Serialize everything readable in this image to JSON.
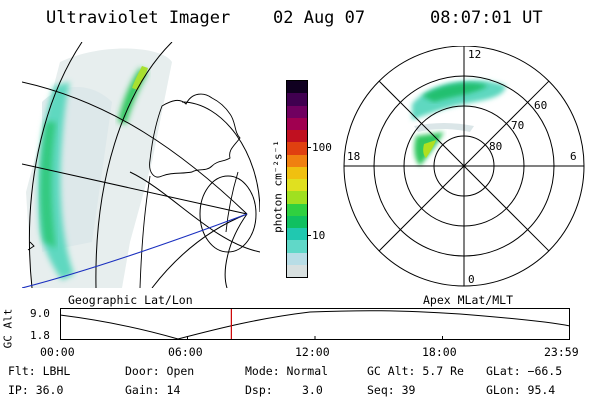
{
  "header": {
    "instrument": "Ultraviolet Imager",
    "date": "02 Aug 07",
    "time": "08:07:01 UT"
  },
  "geo_panel": {
    "caption": "Geographic Lat/Lon"
  },
  "polar_panel": {
    "caption": "Apex MLat/MLT",
    "mlt_labels": [
      "12",
      "18",
      "6",
      "0"
    ],
    "lat_labels": [
      "60",
      "70",
      "80"
    ]
  },
  "colorbar": {
    "unit_label": "photon cm⁻²s⁻¹",
    "ticks": [
      "100",
      "10"
    ],
    "colors": [
      "#d8e0e0",
      "#b8dde6",
      "#60d8c8",
      "#20c8b0",
      "#10c060",
      "#30d040",
      "#a0e020",
      "#e0e020",
      "#f0c010",
      "#f08010",
      "#e04010",
      "#c01020",
      "#a00050",
      "#700060",
      "#400050",
      "#100020"
    ]
  },
  "altitude_plot": {
    "axis_label": "GC Alt",
    "y_ticks": [
      "9.0",
      "1.8"
    ],
    "x_ticks": [
      "00:00",
      "06:00",
      "12:00",
      "18:00",
      "23:59"
    ],
    "current_time_fraction": 0.336,
    "marker_color": "#cc0000"
  },
  "info": {
    "filter": "Flt: LBHL",
    "door": "Door: Open",
    "mode": "Mode: Normal",
    "gc_alt": "GC Alt: 5.7 Re",
    "glat": "GLat: −66.5",
    "ip": "IP: 36.0",
    "gain": "Gain: 14",
    "dsp_label": "Dsp:",
    "dsp_value": "3.0",
    "seq": "Seq: 39",
    "glon": "GLon:  95.4"
  }
}
